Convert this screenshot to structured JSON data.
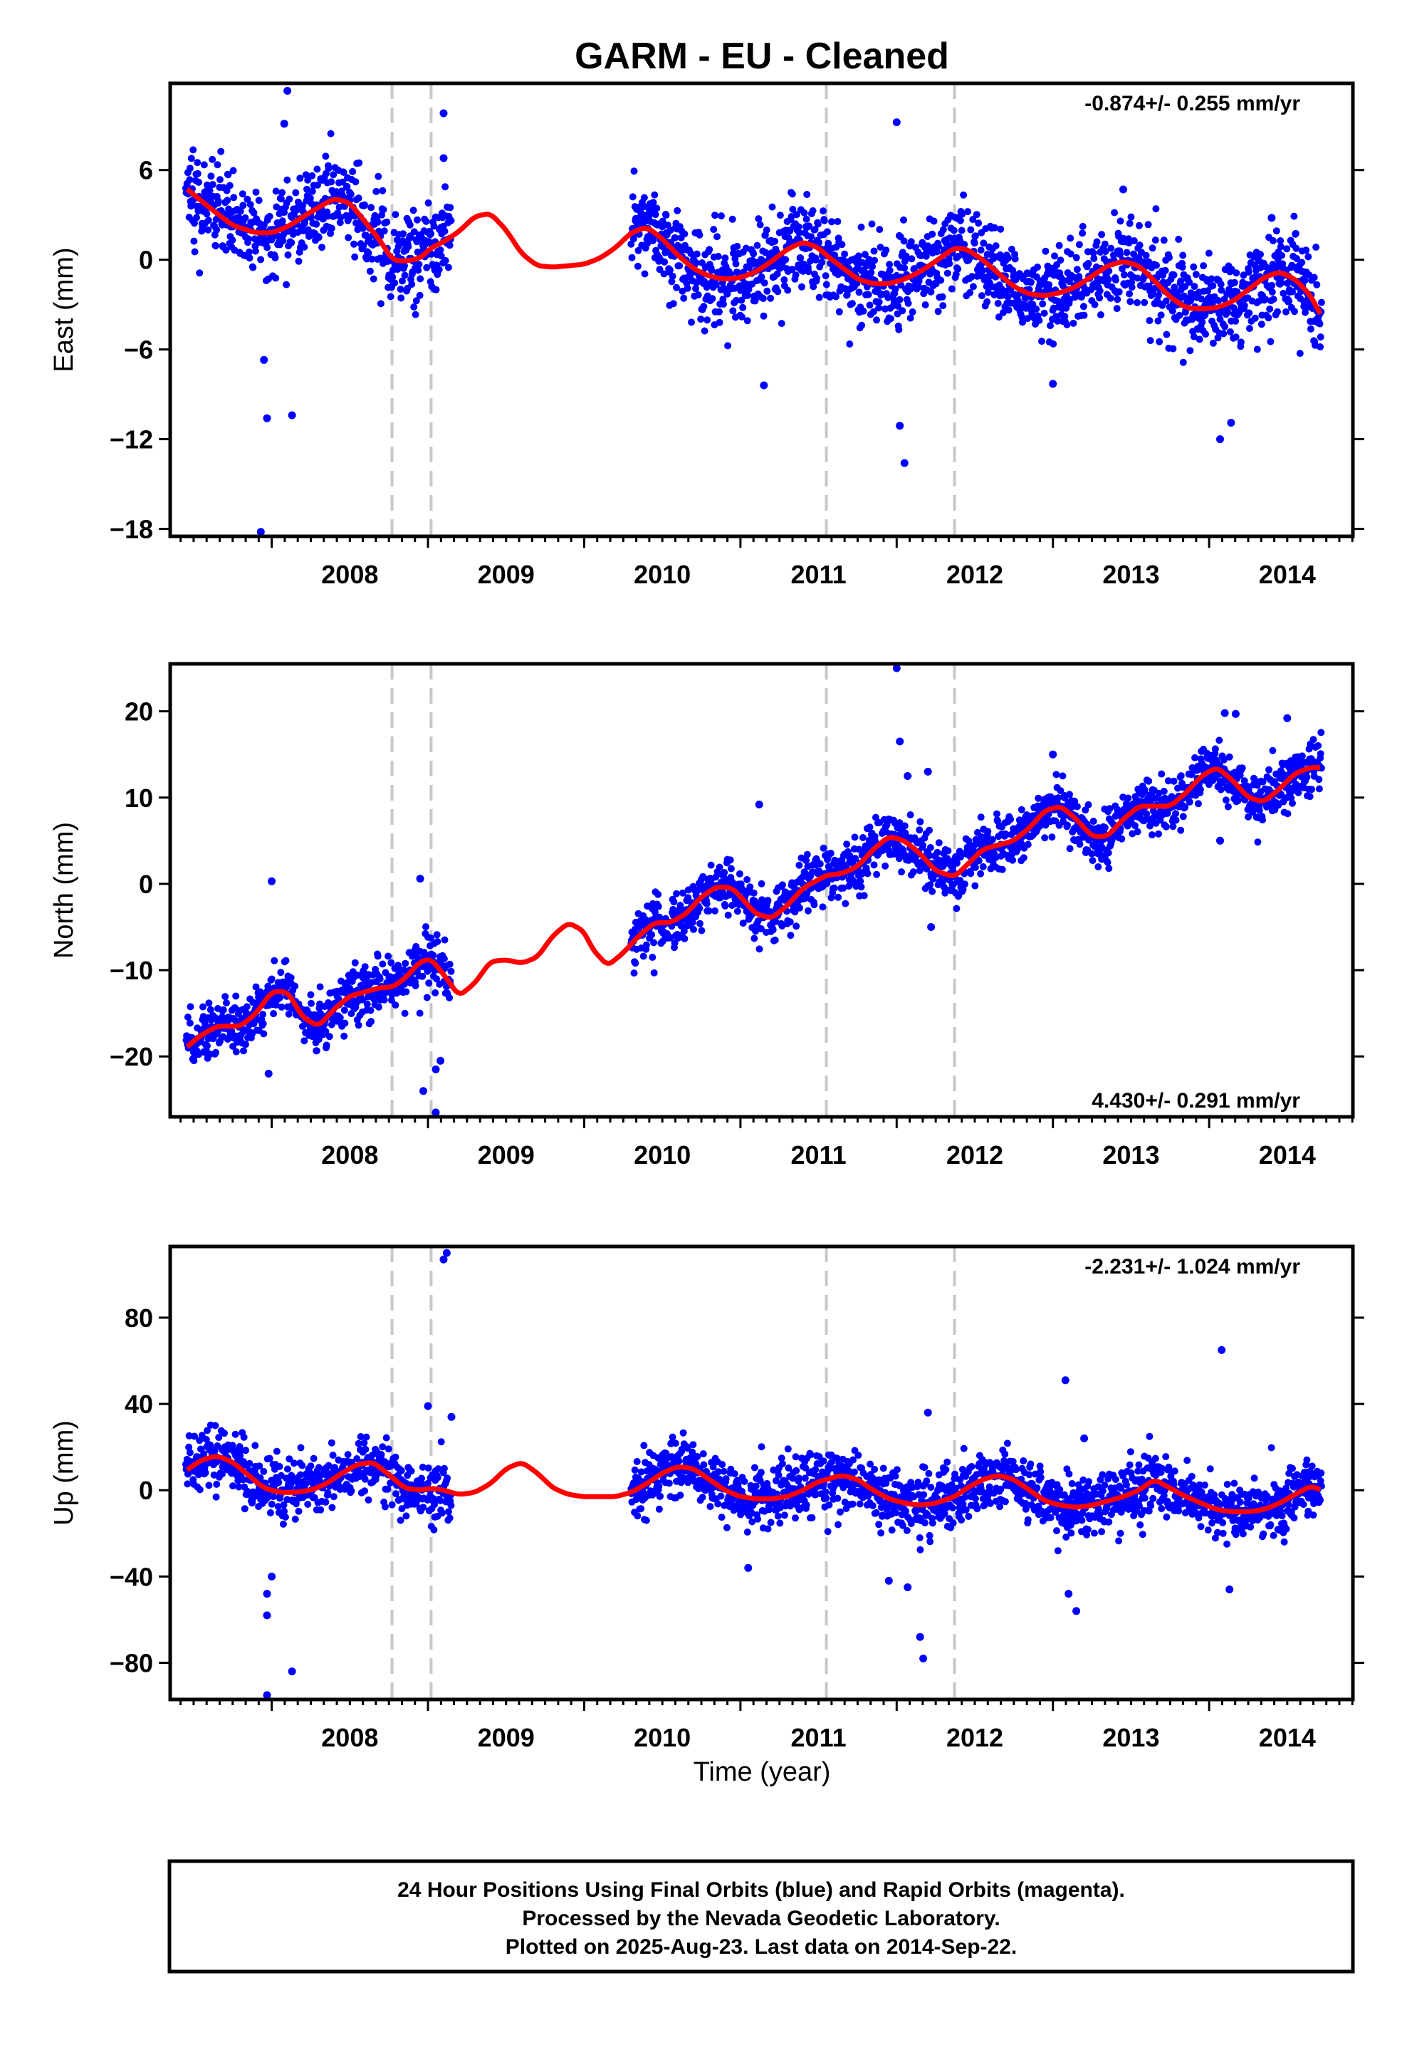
{
  "title": "GARM  - EU - Cleaned",
  "xlabel": "Time (year)",
  "footer": {
    "line1": "24 Hour Positions Using Final Orbits (blue) and Rapid Orbits (magenta).",
    "line2": "Processed by the Nevada Geodetic Laboratory.",
    "line3": "Plotted on 2025-Aug-23. Last data on 2014-Sep-22."
  },
  "colors": {
    "points": "#0000ff",
    "model": "#ff0000",
    "steps": "#c8c8c8",
    "axis": "#000000"
  },
  "chart_data": [
    {
      "type": "scatter",
      "name_panel": "east",
      "ylabel": "East (mm)",
      "rate_text": "-0.874+/- 0.255 mm/yr",
      "xlim": [
        2007.35,
        2014.92
      ],
      "ylim": [
        -18.5,
        11.8
      ],
      "xticks": [
        2008,
        2009,
        2010,
        2011,
        2012,
        2013,
        2014
      ],
      "yticks": [
        6,
        0,
        -6,
        -12,
        -18
      ],
      "ytick_labels": [
        "6",
        "0",
        "−6",
        "−12",
        "−18"
      ],
      "step_lines": [
        2008.77,
        2009.02,
        2011.55,
        2012.37
      ],
      "model": {
        "x": [
          2007.45,
          2007.6,
          2007.75,
          2007.9,
          2008.0,
          2008.1,
          2008.25,
          2008.4,
          2008.5,
          2008.6,
          2008.7,
          2008.77,
          2008.85,
          2008.95,
          2009.02,
          2009.1,
          2009.2,
          2009.3,
          2009.4,
          2009.5,
          2009.6,
          2009.7,
          2009.8,
          2009.9,
          2010.0,
          2010.1,
          2010.2,
          2010.3,
          2010.4,
          2010.5,
          2010.6,
          2010.7,
          2010.8,
          2010.9,
          2011.0,
          2011.1,
          2011.2,
          2011.3,
          2011.4,
          2011.5,
          2011.55,
          2011.65,
          2011.75,
          2011.85,
          2011.95,
          2012.05,
          2012.15,
          2012.25,
          2012.37,
          2012.45,
          2012.55,
          2012.65,
          2012.75,
          2012.85,
          2012.95,
          2013.05,
          2013.15,
          2013.25,
          2013.35,
          2013.45,
          2013.55,
          2013.65,
          2013.75,
          2013.85,
          2013.95,
          2014.05,
          2014.15,
          2014.25,
          2014.35,
          2014.45,
          2014.55,
          2014.65,
          2014.72
        ],
        "y": [
          4.8,
          3.5,
          2.3,
          1.8,
          1.8,
          2.2,
          3.2,
          4.1,
          3.8,
          2.5,
          1.2,
          0.0,
          -0.1,
          0.1,
          0.8,
          1.2,
          1.9,
          2.9,
          3.1,
          2.0,
          0.4,
          -0.4,
          -0.5,
          -0.4,
          -0.3,
          0.1,
          0.8,
          1.8,
          2.2,
          1.4,
          0.3,
          -0.6,
          -1.1,
          -1.3,
          -1.2,
          -0.8,
          -0.1,
          0.7,
          1.2,
          0.8,
          0.3,
          -0.5,
          -1.3,
          -1.6,
          -1.6,
          -1.3,
          -0.8,
          -0.1,
          0.8,
          0.7,
          0.0,
          -0.9,
          -1.8,
          -2.3,
          -2.4,
          -2.2,
          -1.8,
          -1.1,
          -0.4,
          -0.1,
          -0.4,
          -1.4,
          -2.5,
          -3.2,
          -3.3,
          -3.2,
          -2.8,
          -2.0,
          -1.2,
          -0.8,
          -1.3,
          -2.4,
          -3.8
        ]
      },
      "scatter": {
        "segments": [
          [
            2007.45,
            2008.77
          ],
          [
            2008.77,
            2009.15
          ],
          [
            2010.3,
            2014.72
          ]
        ],
        "noise": 1.5,
        "outliers": [
          [
            2007.93,
            -18.2
          ],
          [
            2007.97,
            -10.6
          ],
          [
            2008.13,
            -10.4
          ],
          [
            2007.95,
            -6.7
          ],
          [
            2008.08,
            9.1
          ],
          [
            2008.1,
            11.3
          ],
          [
            2009.1,
            9.8
          ],
          [
            2009.1,
            6.8
          ],
          [
            2011.15,
            -8.4
          ],
          [
            2012.02,
            -11.1
          ],
          [
            2012.05,
            -13.6
          ],
          [
            2012.0,
            9.2
          ],
          [
            2013.0,
            -8.3
          ],
          [
            2014.07,
            -12.0
          ],
          [
            2014.14,
            -10.9
          ],
          [
            2013.45,
            4.7
          ],
          [
            2014.4,
            2.8
          ]
        ]
      }
    },
    {
      "type": "scatter",
      "name_panel": "north",
      "ylabel": "North (mm)",
      "rate_text": "4.430+/- 0.291 mm/yr",
      "xlim": [
        2007.35,
        2014.92
      ],
      "ylim": [
        -27.0,
        25.5
      ],
      "xticks": [
        2008,
        2009,
        2010,
        2011,
        2012,
        2013,
        2014
      ],
      "yticks": [
        20,
        10,
        0,
        -10,
        -20
      ],
      "ytick_labels": [
        "20",
        "10",
        "0",
        "−10",
        "−20"
      ],
      "step_lines": [
        2008.77,
        2009.02,
        2011.55,
        2012.37
      ],
      "model": {
        "x": [
          2007.45,
          2007.55,
          2007.65,
          2007.8,
          2007.9,
          2008.0,
          2008.1,
          2008.2,
          2008.3,
          2008.4,
          2008.5,
          2008.6,
          2008.7,
          2008.77,
          2008.85,
          2008.95,
          2009.02,
          2009.1,
          2009.2,
          2009.3,
          2009.4,
          2009.5,
          2009.6,
          2009.7,
          2009.8,
          2009.9,
          2010.0,
          2010.05,
          2010.15,
          2010.25,
          2010.35,
          2010.45,
          2010.55,
          2010.65,
          2010.75,
          2010.85,
          2010.95,
          2011.0,
          2011.1,
          2011.2,
          2011.3,
          2011.4,
          2011.5,
          2011.55,
          2011.65,
          2011.75,
          2011.85,
          2011.95,
          2012.05,
          2012.15,
          2012.25,
          2012.37,
          2012.45,
          2012.55,
          2012.65,
          2012.75,
          2012.85,
          2012.95,
          2013.05,
          2013.15,
          2013.25,
          2013.35,
          2013.45,
          2013.55,
          2013.65,
          2013.75,
          2013.85,
          2013.95,
          2014.05,
          2014.15,
          2014.25,
          2014.35,
          2014.45,
          2014.55,
          2014.65,
          2014.72
        ],
        "y": [
          -19.0,
          -17.5,
          -16.5,
          -16.5,
          -15.0,
          -12.5,
          -12.5,
          -15.5,
          -16.5,
          -14.5,
          -13.0,
          -12.5,
          -12.0,
          -12.0,
          -11.0,
          -9.0,
          -8.7,
          -10.5,
          -13.0,
          -11.5,
          -9.0,
          -8.8,
          -9.2,
          -8.5,
          -6.0,
          -4.5,
          -5.5,
          -7.5,
          -9.5,
          -8.0,
          -6.0,
          -4.5,
          -4.5,
          -3.5,
          -1.5,
          -0.3,
          -0.5,
          -1.5,
          -3.5,
          -4.0,
          -2.5,
          -0.5,
          0.5,
          1.0,
          1.2,
          2.0,
          4.0,
          5.5,
          5.0,
          3.5,
          1.5,
          0.8,
          2.2,
          4.0,
          4.5,
          5.0,
          6.5,
          8.5,
          9.0,
          7.5,
          5.5,
          5.5,
          7.5,
          9.0,
          9.0,
          9.0,
          10.5,
          12.5,
          13.5,
          12.0,
          10.0,
          9.5,
          11.0,
          12.8,
          13.5,
          13.5
        ]
      },
      "scatter": {
        "segments": [
          [
            2007.45,
            2008.77
          ],
          [
            2008.77,
            2009.15
          ],
          [
            2010.3,
            2014.72
          ]
        ],
        "noise": 1.5,
        "outliers": [
          [
            2008.0,
            0.3
          ],
          [
            2007.98,
            -22.0
          ],
          [
            2008.97,
            -24.0
          ],
          [
            2009.05,
            -26.5
          ],
          [
            2009.08,
            -20.5
          ],
          [
            2009.05,
            -21.5
          ],
          [
            2011.12,
            9.2
          ],
          [
            2012.02,
            16.5
          ],
          [
            2012.0,
            25.0
          ],
          [
            2012.07,
            12.5
          ],
          [
            2012.2,
            13.0
          ],
          [
            2012.22,
            -5.0
          ],
          [
            2013.0,
            15.0
          ],
          [
            2014.1,
            19.8
          ],
          [
            2014.17,
            19.7
          ],
          [
            2014.5,
            19.2
          ],
          [
            2014.07,
            5.0
          ],
          [
            2008.95,
            0.6
          ]
        ]
      }
    },
    {
      "type": "scatter",
      "name_panel": "up",
      "ylabel": "Up (mm)",
      "rate_text": "-2.231+/- 1.024 mm/yr",
      "xlim": [
        2007.35,
        2014.92
      ],
      "ylim": [
        -97.0,
        113.0
      ],
      "xticks": [
        2008,
        2009,
        2010,
        2011,
        2012,
        2013,
        2014
      ],
      "yticks": [
        80,
        40,
        0,
        -40,
        -80
      ],
      "ytick_labels": [
        "80",
        "40",
        "0",
        "−40",
        "−80"
      ],
      "step_lines": [
        2008.77,
        2009.02,
        2011.55,
        2012.37
      ],
      "model": {
        "x": [
          2007.45,
          2007.55,
          2007.65,
          2007.75,
          2007.85,
          2007.95,
          2008.05,
          2008.15,
          2008.25,
          2008.35,
          2008.45,
          2008.55,
          2008.65,
          2008.77,
          2008.85,
          2008.95,
          2009.02,
          2009.1,
          2009.2,
          2009.3,
          2009.4,
          2009.5,
          2009.6,
          2009.7,
          2009.8,
          2009.9,
          2010.0,
          2010.1,
          2010.2,
          2010.3,
          2010.4,
          2010.5,
          2010.6,
          2010.7,
          2010.8,
          2010.9,
          2011.0,
          2011.1,
          2011.2,
          2011.3,
          2011.4,
          2011.5,
          2011.55,
          2011.65,
          2011.75,
          2011.85,
          2011.95,
          2012.05,
          2012.15,
          2012.25,
          2012.37,
          2012.45,
          2012.55,
          2012.65,
          2012.75,
          2012.85,
          2012.95,
          2013.05,
          2013.15,
          2013.25,
          2013.35,
          2013.45,
          2013.55,
          2013.65,
          2013.75,
          2013.85,
          2013.95,
          2014.05,
          2014.15,
          2014.25,
          2014.35,
          2014.45,
          2014.55,
          2014.65,
          2014.72
        ],
        "y": [
          9,
          14,
          16,
          13,
          7,
          1,
          -1,
          -1,
          0,
          3,
          8,
          12,
          13,
          6,
          1,
          0,
          1,
          0,
          -2,
          -1,
          3,
          10,
          13,
          8,
          1,
          -2,
          -3,
          -3,
          -3,
          -1,
          3,
          8,
          11,
          10,
          5,
          0,
          -3,
          -4,
          -4,
          -3,
          0,
          4,
          5,
          7,
          5,
          0,
          -4,
          -6,
          -7,
          -6,
          -3,
          1,
          5,
          7,
          5,
          0,
          -5,
          -7,
          -8,
          -7,
          -5,
          -3,
          0,
          5,
          1,
          -3,
          -6,
          -9,
          -10,
          -10,
          -9,
          -6,
          -2,
          2,
          0
        ]
      },
      "scatter": {
        "segments": [
          [
            2007.45,
            2008.77
          ],
          [
            2008.77,
            2009.15
          ],
          [
            2010.3,
            2014.72
          ]
        ],
        "noise": 7,
        "outliers": [
          [
            2007.97,
            -95
          ],
          [
            2008.13,
            -84
          ],
          [
            2007.97,
            -58
          ],
          [
            2007.97,
            -48
          ],
          [
            2008.0,
            -40
          ],
          [
            2009.1,
            107
          ],
          [
            2009.12,
            110
          ],
          [
            2009.0,
            39
          ],
          [
            2009.15,
            34
          ],
          [
            2011.05,
            -36
          ],
          [
            2012.07,
            -45
          ],
          [
            2012.15,
            -68
          ],
          [
            2012.17,
            -78
          ],
          [
            2011.95,
            -42
          ],
          [
            2012.2,
            36
          ],
          [
            2013.08,
            51
          ],
          [
            2013.15,
            -56
          ],
          [
            2013.1,
            -48
          ],
          [
            2013.2,
            24
          ],
          [
            2014.08,
            65
          ],
          [
            2014.13,
            -46
          ]
        ]
      }
    }
  ]
}
